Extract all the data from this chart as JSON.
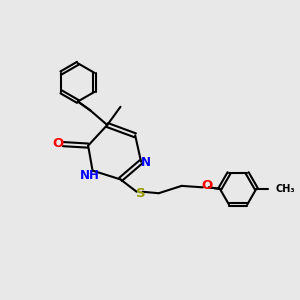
{
  "background_color": "#e8e8e8",
  "bond_color": "#000000",
  "N_color": "#0000ff",
  "O_color": "#ff0000",
  "S_color": "#999900",
  "line_width": 1.5,
  "font_size": 8.5,
  "fig_width": 3.0,
  "fig_height": 3.0,
  "dpi": 100,
  "xlim": [
    0,
    10
  ],
  "ylim": [
    0,
    10
  ]
}
